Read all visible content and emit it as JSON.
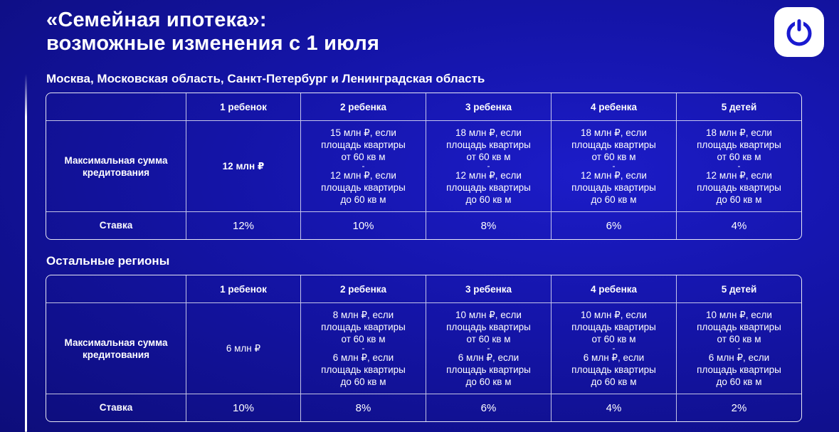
{
  "header": {
    "title_line1": "«Семейная ипотека»:",
    "title_line2": "возможные изменения с 1 июля",
    "logo_icon": "power-icon"
  },
  "colors": {
    "background": "#1414a6",
    "text": "#ffffff",
    "logo_bg": "#ffffff",
    "logo_fg": "#1a1ad0"
  },
  "columns": [
    "",
    "1 ребенок",
    "2 ребенка",
    "3 ребенка",
    "4 ребенка",
    "5 детей"
  ],
  "section1": {
    "title": "Москва, Московская область, Санкт-Петербург и Ленинградская область",
    "sum_label": "Максимальная сумма кредитования",
    "rate_label": "Ставка",
    "sum": {
      "c1": "12 млн ₽",
      "c2": {
        "a1": "15 млн ₽, если",
        "a2": "площадь квартиры",
        "a3": "от 60 кв м",
        "dash": "-",
        "b1": "12 млн ₽, если",
        "b2": "площадь квартиры",
        "b3": "до 60 кв м"
      },
      "c3": {
        "a1": "18 млн ₽, если",
        "a2": "площадь квартиры",
        "a3": "от 60 кв м",
        "dash": "-",
        "b1": "12 млн ₽, если",
        "b2": "площадь квартиры",
        "b3": "до 60 кв м"
      },
      "c4": {
        "a1": "18 млн ₽, если",
        "a2": "площадь квартиры",
        "a3": "от 60 кв м",
        "dash": "-",
        "b1": "12 млн ₽, если",
        "b2": "площадь квартиры",
        "b3": "до 60 кв м"
      },
      "c5": {
        "a1": "18 млн ₽, если",
        "a2": "площадь квартиры",
        "a3": "от 60 кв м",
        "dash": "-",
        "b1": "12 млн ₽, если",
        "b2": "площадь квартиры",
        "b3": "до 60 кв м"
      }
    },
    "rates": [
      "12%",
      "10%",
      "8%",
      "6%",
      "4%"
    ]
  },
  "section2": {
    "title": "Остальные регионы",
    "sum_label": "Максимальная сумма кредитования",
    "rate_label": "Ставка",
    "sum": {
      "c1": "6 млн ₽",
      "c2": {
        "a1": "8 млн ₽, если",
        "a2": "площадь квартиры",
        "a3": "от 60 кв м",
        "dash": "-",
        "b1": "6 млн ₽, если",
        "b2": "площадь квартиры",
        "b3": "до 60 кв м"
      },
      "c3": {
        "a1": "10 млн ₽, если",
        "a2": "площадь квартиры",
        "a3": "от 60 кв м",
        "dash": "-",
        "b1": "6 млн ₽, если",
        "b2": "площадь квартиры",
        "b3": "до 60 кв м"
      },
      "c4": {
        "a1": "10 млн ₽, если",
        "a2": "площадь квартиры",
        "a3": "от 60 кв м",
        "dash": "-",
        "b1": "6 млн ₽, если",
        "b2": "площадь квартиры",
        "b3": "до 60 кв м"
      },
      "c5": {
        "a1": "10 млн ₽, если",
        "a2": "площадь квартиры",
        "a3": "от 60 кв м",
        "dash": "-",
        "b1": "6 млн ₽, если",
        "b2": "площадь квартиры",
        "b3": "до 60 кв м"
      }
    },
    "rates": [
      "10%",
      "8%",
      "6%",
      "4%",
      "2%"
    ]
  }
}
